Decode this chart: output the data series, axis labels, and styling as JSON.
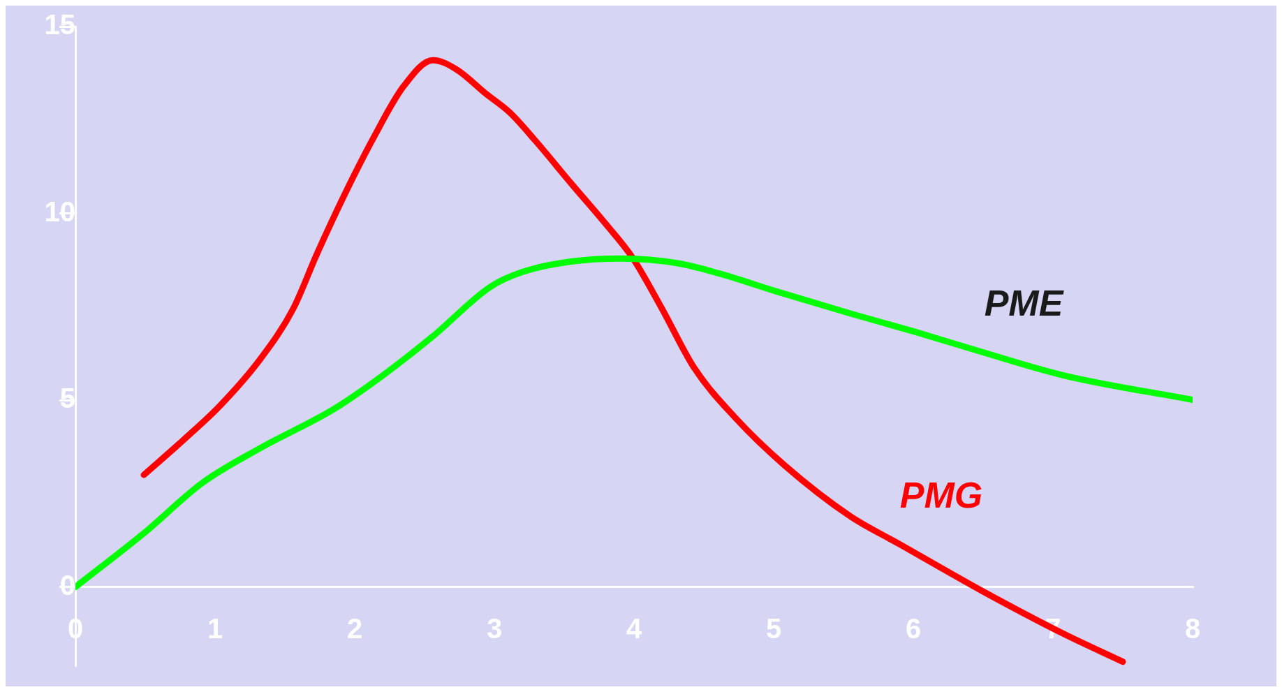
{
  "chart_data": {
    "type": "line",
    "xlim": [
      0,
      8
    ],
    "ylim": [
      -2.1,
      15
    ],
    "xticks": [
      0,
      1,
      2,
      3,
      4,
      5,
      6,
      7,
      8
    ],
    "yticks": [
      0,
      5,
      10,
      15
    ],
    "grid": false,
    "legend": false,
    "marker": "none",
    "line_style": "solid",
    "series": [
      {
        "name": "PME",
        "color": "#00ff00",
        "x": [
          0,
          0.5,
          0.91,
          1.32,
          1.85,
          2.2,
          2.56,
          2.97,
          3.2,
          3.55,
          3.91,
          4.32,
          4.61,
          5.02,
          5.55,
          6.02,
          6.49,
          7.08,
          8
        ],
        "values": [
          0,
          1.47,
          2.79,
          3.71,
          4.76,
          5.66,
          6.71,
          8.03,
          8.43,
          8.71,
          8.79,
          8.66,
          8.39,
          7.91,
          7.32,
          6.82,
          6.29,
          5.66,
          5.01
        ]
      },
      {
        "name": "PMG",
        "color": "#ff0000",
        "x": [
          0.49,
          0.79,
          1.03,
          1.32,
          1.56,
          1.73,
          1.94,
          2.14,
          2.35,
          2.56,
          2.73,
          2.94,
          3.11,
          3.29,
          3.55,
          3.79,
          3.99,
          4.2,
          4.43,
          4.73,
          5.08,
          5.55,
          5.9,
          6.49,
          7.08,
          7.5
        ],
        "values": [
          3.0,
          3.99,
          4.83,
          6.08,
          7.45,
          8.92,
          10.6,
          12.06,
          13.4,
          14.1,
          13.85,
          13.2,
          12.7,
          11.96,
          10.8,
          9.75,
          8.81,
          7.45,
          5.87,
          4.51,
          3.25,
          1.89,
          1.15,
          -0.1,
          -1.26,
          -2.0
        ]
      }
    ]
  }
}
